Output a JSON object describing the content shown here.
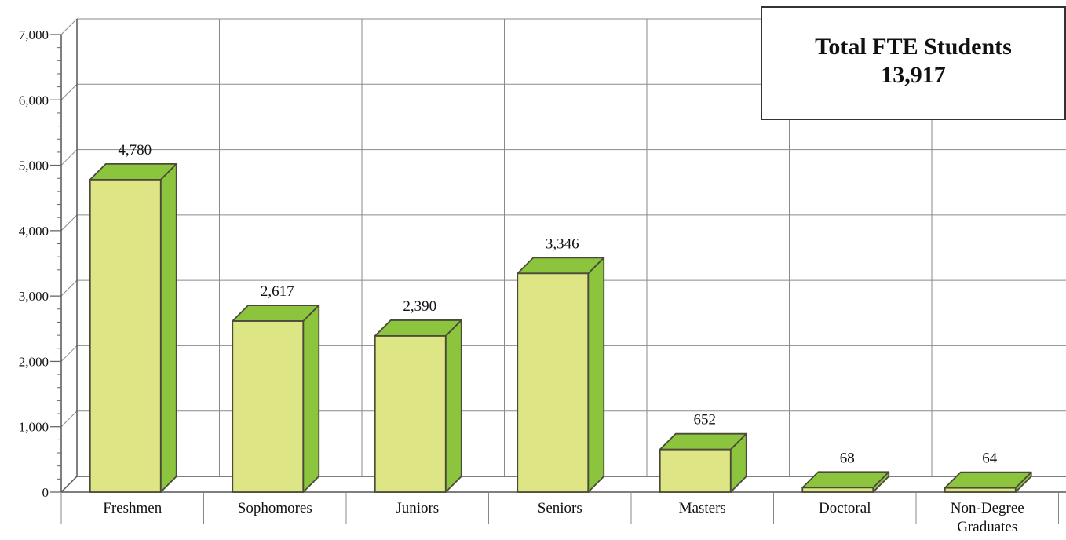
{
  "chart_data": {
    "type": "bar",
    "categories": [
      "Freshmen",
      "Sophomores",
      "Juniors",
      "Seniors",
      "Masters",
      "Doctoral",
      "Non-Degree Graduates"
    ],
    "values": [
      4780,
      2617,
      2390,
      3346,
      652,
      68,
      64
    ],
    "data_labels": [
      "4,780",
      "2,617",
      "2,390",
      "3,346",
      "652",
      "68",
      "64"
    ],
    "ylim": [
      0,
      7000
    ],
    "yticks": [
      "0",
      "1,000",
      "2,000",
      "3,000",
      "4,000",
      "5,000",
      "6,000",
      "7,000"
    ],
    "grid": true,
    "style": "3d",
    "colors": {
      "bar_front": "#dde584",
      "bar_side": "#8dc43e",
      "outline": "#4a4a3a",
      "grid": "#8a8a8a"
    }
  },
  "summary": {
    "title": "Total FTE Students",
    "value": "13,917"
  }
}
